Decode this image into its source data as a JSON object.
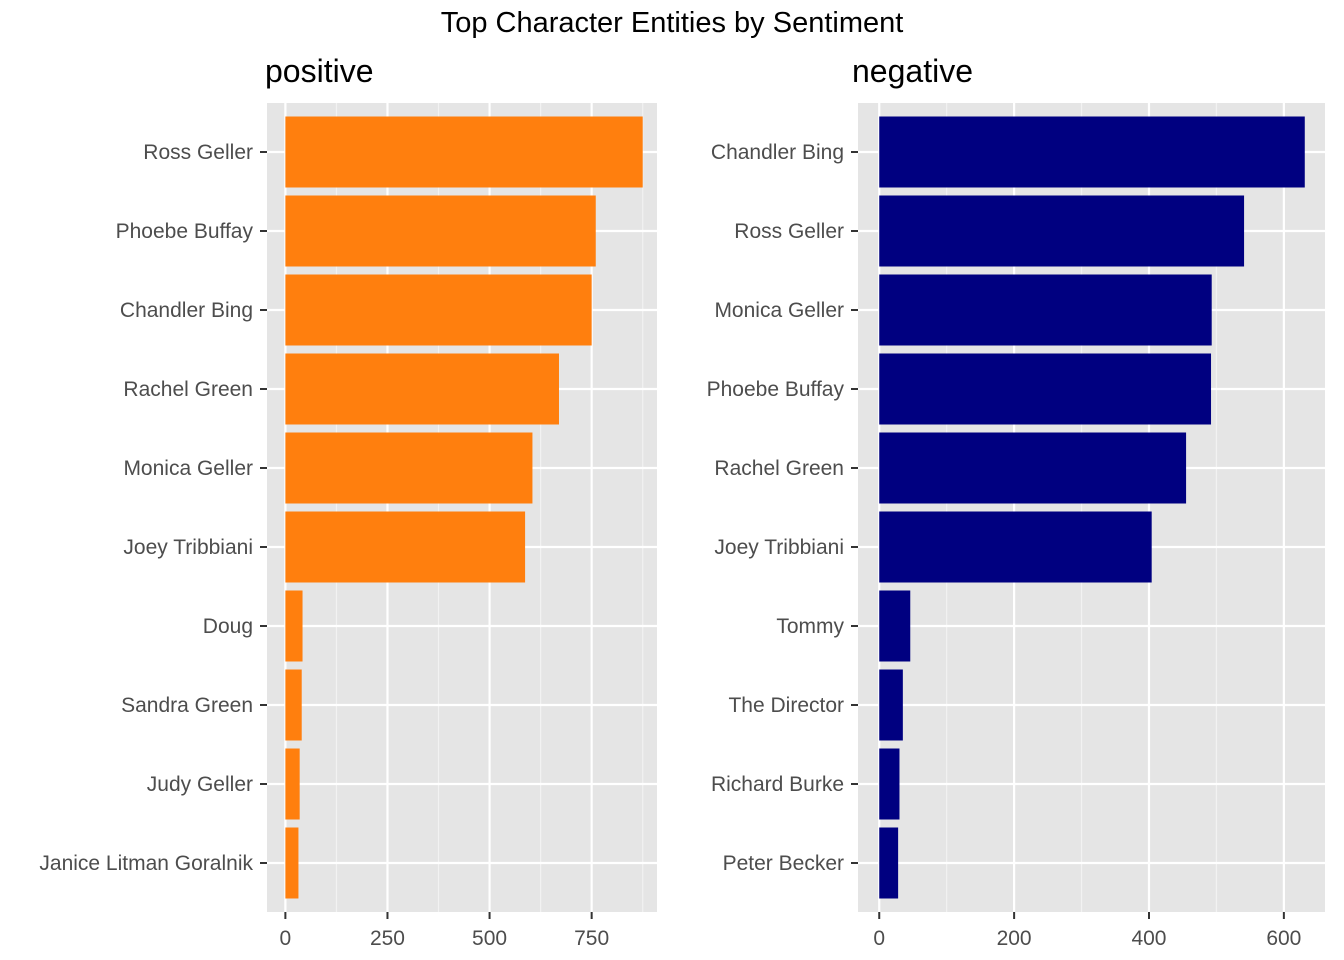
{
  "title": "Top Character Entities by Sentiment",
  "chart_data": [
    {
      "type": "bar",
      "orientation": "horizontal",
      "panel_title": "positive",
      "color": "#ff7f0e",
      "categories": [
        "Ross Geller",
        "Phoebe Buffay",
        "Chandler Bing",
        "Rachel Green",
        "Monica Geller",
        "Joey Tribbiani",
        "Doug",
        "Sandra Green",
        "Judy Geller",
        "Janice Litman Goralnik"
      ],
      "values": [
        875,
        760,
        750,
        670,
        605,
        587,
        42,
        40,
        35,
        32
      ],
      "xlim": [
        -45,
        910
      ],
      "xticks": [
        0,
        250,
        500,
        750
      ],
      "xlabel": "",
      "ylabel": "",
      "grid": true
    },
    {
      "type": "bar",
      "orientation": "horizontal",
      "panel_title": "negative",
      "color": "#000080",
      "categories": [
        "Chandler Bing",
        "Ross Geller",
        "Monica Geller",
        "Phoebe Buffay",
        "Rachel Green",
        "Joey Tribbiani",
        "Tommy",
        "The Director",
        "Richard Burke",
        "Peter Becker"
      ],
      "values": [
        631,
        541,
        493,
        492,
        455,
        404,
        46,
        35,
        30,
        28
      ],
      "xlim": [
        -31.5,
        661
      ],
      "xticks": [
        0,
        200,
        400,
        600
      ],
      "xlabel": "",
      "ylabel": "",
      "grid": true
    }
  ]
}
